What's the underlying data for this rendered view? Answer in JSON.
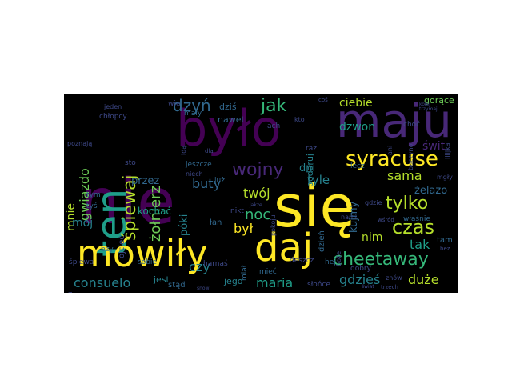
{
  "background": "#000000",
  "page_background": "#ffffff",
  "palette": [
    "#fde725",
    "#b5de2b",
    "#6ece58",
    "#35b779",
    "#1f9e89",
    "#26828e",
    "#31688e",
    "#3e4989",
    "#482878",
    "#440154"
  ],
  "words": {
    "nie": "nie",
    "sie": "się",
    "bylo": "było",
    "maju": "maju",
    "ten": "ten",
    "mowily": "mówiły",
    "daj": "daj",
    "spiewaj": "śpiewaj",
    "zolnierz": "żołnierz",
    "dzyn": "dzyń",
    "jak": "jak",
    "syracuse": "syracuse",
    "wojny": "wojny",
    "cheetaway": "cheetaway",
    "tylko": "tylko",
    "czas": "czas",
    "gwiazdo": "gwiazdo",
    "noc": "noc",
    "twoj": "twój",
    "byl": "był",
    "mnie": "mnie",
    "consuelo": "consuelo",
    "maria": "maria",
    "gdzies": "gdzieś",
    "duze": "duże",
    "buty": "buty",
    "dzwon": "dzwon",
    "ciebie": "ciebie",
    "sama": "sama",
    "zelazo": "żelazo",
    "swit": "świt",
    "tyle": "tyle",
    "dni": "dni",
    "kujmy": "kujmy",
    "czy": "czy",
    "moj": "mój",
    "nim": "nim",
    "tak": "tak",
    "goroce": "gorące",
    "kochac": "kochać",
    "poki": "póki",
    "przez": "przez",
    "dzis": "dziś",
    "nawet": "nawet",
    "maly": "mały",
    "wie": "wie",
    "jeden": "jeden",
    "chlopcy": "chłopcy",
    "poznaja": "poznają",
    "sto": "sto",
    "tym": "tym",
    "tys": "tyś",
    "bzy": "bzy",
    "spiewa": "śpiewa",
    "gdybym": "gdybym",
    "ojciec": "ojciec",
    "sobie": "sobie",
    "jest": "jest",
    "stad": "stąd",
    "jego": "jego",
    "lan": "łan",
    "harnas": "harnaś",
    "miec": "mieć",
    "sionce": "słońce",
    "deszcz": "deszcz",
    "hej": "hej",
    "dobry": "dobry",
    "tam": "tam",
    "wlasnie": "właśnie",
    "gdzie": "gdzie",
    "jeszcze": "jeszcze",
    "niech": "niech",
    "juz": "już",
    "nikt": "nikt",
    "ach": "ach",
    "kto": "kto",
    "raz": "raz",
    "lecz": "lecz",
    "podaruj": "podaruj",
    "dzien": "dzień",
    "nami": "nami",
    "chyba": "chyba",
    "choc": "choć",
    "ani": "ani",
    "znow": "znów",
    "mgly": "mgły",
    "lubie": "lubię",
    "bez": "bez",
    "ida": "idą",
    "dla": "dla",
    "pokoju": "pokoju",
    "snow": "snów",
    "swiat": "świat",
    "trzech": "trzech",
    "wsrod": "wśród",
    "lilijka": "lilijka",
    "mial": "miał",
    "boze": "boże",
    "jakze": "jakże",
    "kolej": "kolej",
    "trzymaj": "trzymaj",
    "buczyno": "buczyno",
    "cos": "coś"
  }
}
